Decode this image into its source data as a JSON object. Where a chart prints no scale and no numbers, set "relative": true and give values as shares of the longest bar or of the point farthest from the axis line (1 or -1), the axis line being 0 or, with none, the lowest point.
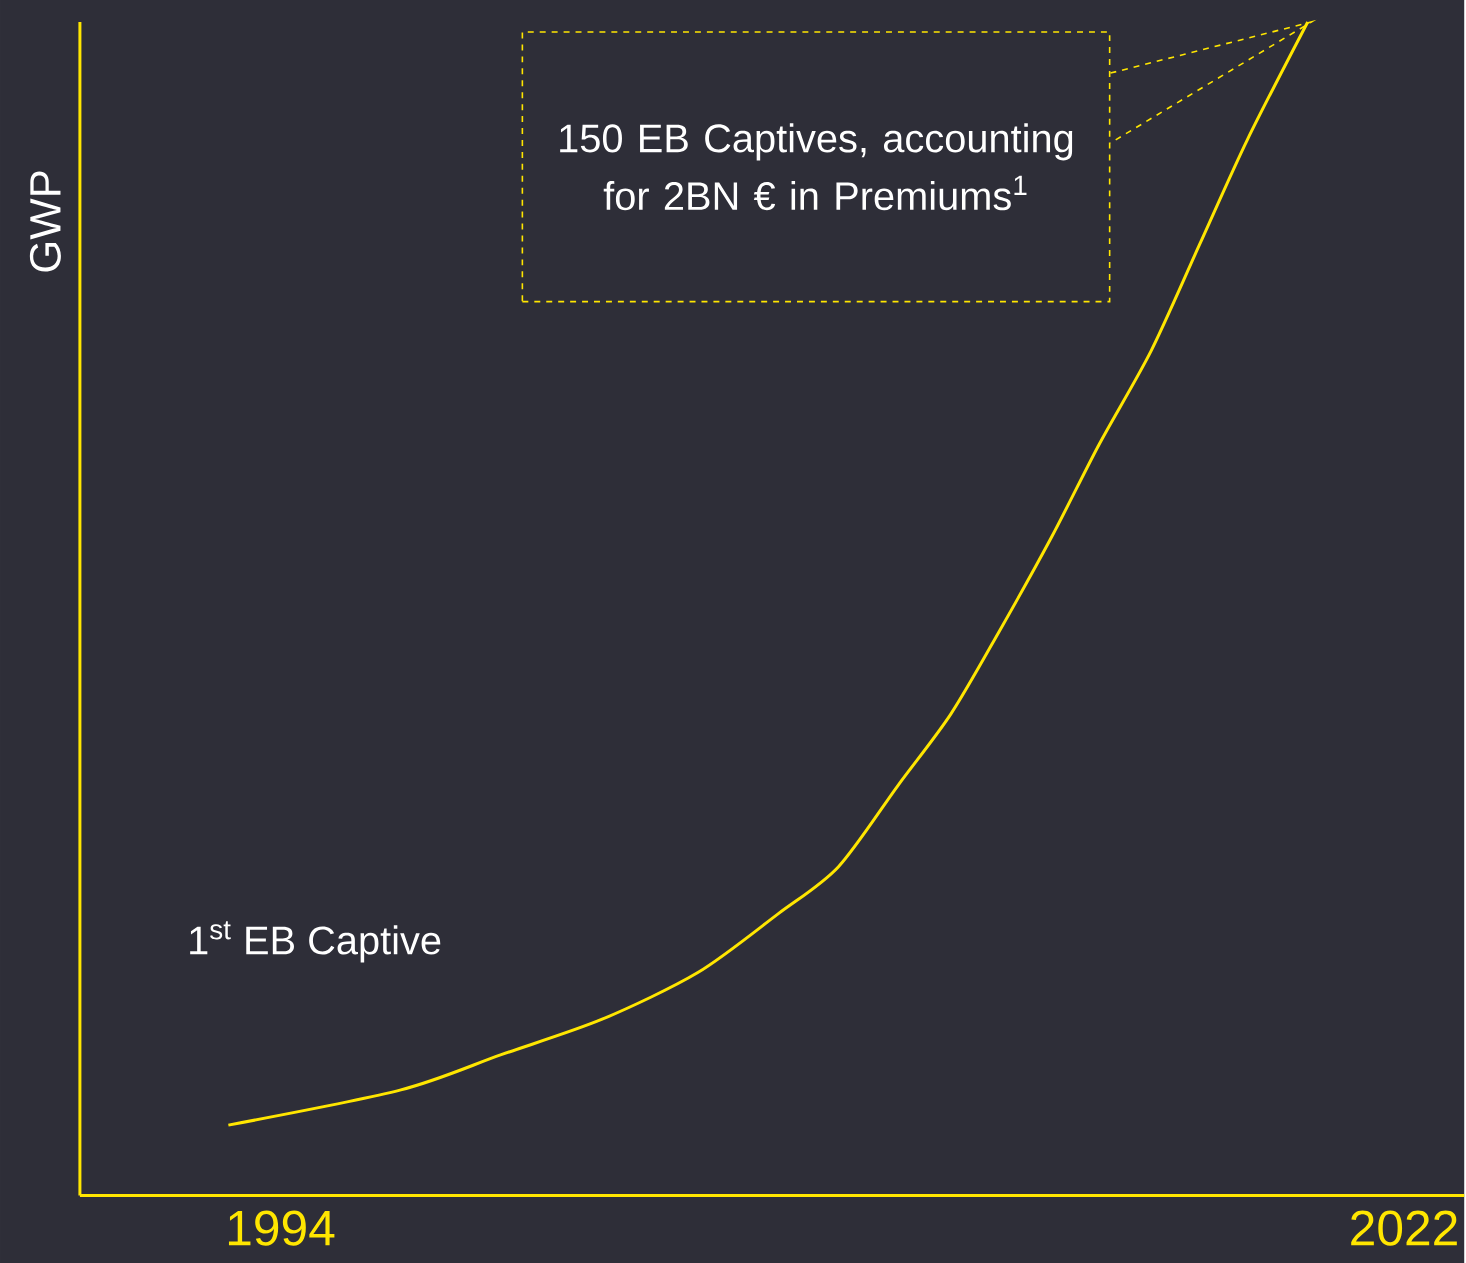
{
  "chart_data": {
    "type": "line",
    "ylabel": "GWP",
    "relative": true,
    "color": "#ffe600",
    "x": [
      1992.7,
      1997.0,
      1999.5,
      2002.0,
      2004.4,
      2006.4,
      2007.9,
      2009.4,
      2010.7,
      2011.9,
      2013.2,
      2014.4,
      2015.7,
      2016.9,
      2018.1,
      2019.6
    ],
    "values": [
      0.06,
      0.09,
      0.12,
      0.15,
      0.19,
      0.24,
      0.28,
      0.35,
      0.41,
      0.48,
      0.56,
      0.64,
      0.72,
      0.81,
      0.9,
      1.0
    ],
    "xlim": [
      1989,
      2023.5
    ],
    "xticks": [
      1994,
      2022
    ],
    "annotations": [
      "150 EB Captives, accounting for 2BN € in Premiums$^{1}$",
      "1$^{st}$ EB Captive"
    ]
  }
}
